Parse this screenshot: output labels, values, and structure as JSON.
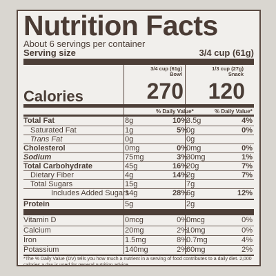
{
  "label": {
    "title": "Nutrition Facts",
    "servings_per_container": "About 6 servings per container",
    "serving_size_label": "Serving size",
    "serving_size_value": "3/4 cup (61g)",
    "col1_header_line1": "3/4 cup (61g)",
    "col1_header_line2": "Bowl",
    "col2_header_line1": "1/3 cup (27g)",
    "col2_header_line2": "Snack",
    "calories_label": "Calories",
    "calories_col1": "270",
    "calories_col2": "120",
    "dv_header": "% Daily Value*",
    "rows": [
      {
        "name": "Total Fat",
        "a1": "8g",
        "p1": "10%",
        "a2": "3.5g",
        "p2": "4%"
      },
      {
        "name": "Saturated Fat",
        "a1": "1g",
        "p1": "5%",
        "a2": "0g",
        "p2": "0%"
      },
      {
        "name": "Trans Fat",
        "a1": "0g",
        "p1": "",
        "a2": "0g",
        "p2": ""
      },
      {
        "name": "Cholesterol",
        "a1": "0mg",
        "p1": "0%",
        "a2": "0mg",
        "p2": "0%"
      },
      {
        "name": "Sodium",
        "a1": "75mg",
        "p1": "3%",
        "a2": "30mg",
        "p2": "1%"
      },
      {
        "name": "Total Carbohydrate",
        "a1": "45g",
        "p1": "16%",
        "a2": "20g",
        "p2": "7%"
      },
      {
        "name": "Dietary Fiber",
        "a1": "4g",
        "p1": "14%",
        "a2": "2g",
        "p2": "7%"
      },
      {
        "name": "Total Sugars",
        "a1": "15g",
        "p1": "",
        "a2": "7g",
        "p2": ""
      },
      {
        "name": "Includes Added Sugars",
        "a1": "14g",
        "p1": "28%",
        "a2": "6g",
        "p2": "12%"
      },
      {
        "name": "Protein",
        "a1": "5g",
        "p1": "",
        "a2": "2g",
        "p2": ""
      },
      {
        "name": "Vitamin D",
        "a1": "0mcg",
        "p1": "0%",
        "a2": "0mcg",
        "p2": "0%"
      },
      {
        "name": "Calcium",
        "a1": "20mg",
        "p1": "2%",
        "a2": "10mg",
        "p2": "0%"
      },
      {
        "name": "Iron",
        "a1": "1.5mg",
        "p1": "8%",
        "a2": "0.7mg",
        "p2": "4%"
      },
      {
        "name": "Potassium",
        "a1": "140mg",
        "p1": "2%",
        "a2": "60mg",
        "p2": "2%"
      }
    ],
    "footnote": "*The % Daily Value (DV) tells you how much a nutrient in a serving of food contributes to a daily diet. 2,000 calories a day is used for general nutrition advice."
  }
}
